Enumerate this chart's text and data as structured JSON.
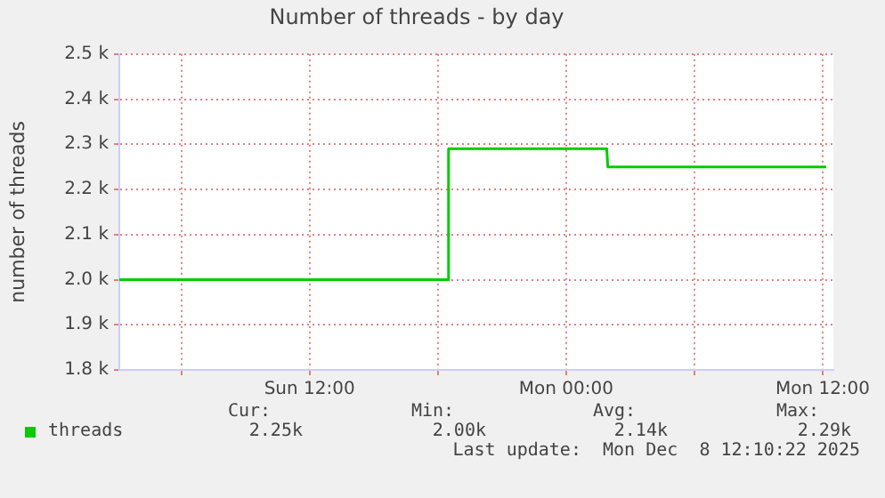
{
  "chart_data": {
    "type": "line",
    "title": "Number of threads - by day",
    "ylabel": "number of threads",
    "x": [
      "2025-12-07T03:06",
      "2025-12-07T18:28",
      "2025-12-07T18:30",
      "2025-12-08T01:54",
      "2025-12-08T01:57",
      "2025-12-08T12:10"
    ],
    "series": [
      {
        "name": "threads",
        "color": "#00cc00",
        "values": [
          2000,
          2000,
          2290,
          2290,
          2250,
          2250
        ]
      }
    ],
    "xlim": [
      "2025-12-07T03:06",
      "2025-12-08T12:30"
    ],
    "xticks": [
      {
        "value": "2025-12-07T06:00",
        "label": null
      },
      {
        "value": "2025-12-07T12:00",
        "label": "Sun 12:00"
      },
      {
        "value": "2025-12-07T18:00",
        "label": null
      },
      {
        "value": "2025-12-08T00:00",
        "label": "Mon 00:00"
      },
      {
        "value": "2025-12-08T06:00",
        "label": null
      },
      {
        "value": "2025-12-08T12:00",
        "label": "Mon 12:00"
      }
    ],
    "ylim": [
      1800,
      2500
    ],
    "yticks": [
      {
        "value": 1800,
        "label": "1.8 k"
      },
      {
        "value": 1900,
        "label": "1.9 k"
      },
      {
        "value": 2000,
        "label": "2.0 k"
      },
      {
        "value": 2100,
        "label": "2.1 k"
      },
      {
        "value": 2200,
        "label": "2.2 k"
      },
      {
        "value": 2300,
        "label": "2.3 k"
      },
      {
        "value": 2400,
        "label": "2.4 k"
      },
      {
        "value": 2500,
        "label": "2.5 k"
      }
    ],
    "grid": true,
    "legend": "bottom",
    "marker": "none",
    "line_style": "solid",
    "annotations": [
      "Cur:",
      "Min:",
      "Avg:",
      "Max:",
      "2.25k",
      "2.00k",
      "2.14k",
      "2.29k",
      "Last update:  Mon Dec  8 12:10:22 2025"
    ]
  }
}
